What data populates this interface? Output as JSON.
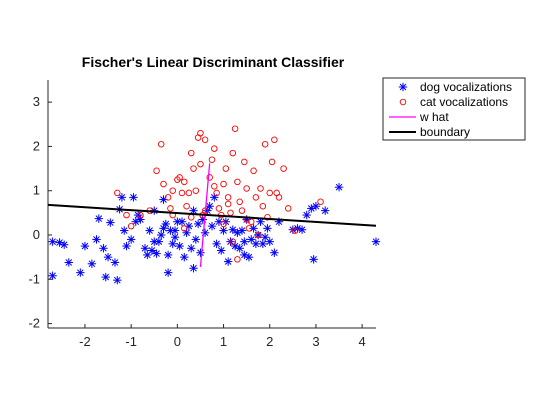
{
  "chart_data": {
    "type": "scatter",
    "title": "Fischer's Linear Discriminant Classifier",
    "xlabel": "",
    "ylabel": "",
    "xlim": [
      -2.8,
      4.3
    ],
    "ylim": [
      -2.1,
      3.5
    ],
    "xticks": [
      -2,
      -1,
      0,
      1,
      2,
      3,
      4
    ],
    "yticks": [
      -2,
      -1,
      0,
      1,
      2,
      3
    ],
    "grid": false,
    "legend_position": "top-right-outside",
    "colors": {
      "dog": "#0000ff",
      "cat": "#ff0000",
      "what": "#ff00ff",
      "boundary": "#000000",
      "axis": "#262626"
    },
    "legend": [
      {
        "key": "dog",
        "label": "dog vocalizations"
      },
      {
        "key": "cat",
        "label": "cat vocalizations"
      },
      {
        "key": "what",
        "label": "w hat"
      },
      {
        "key": "boundary",
        "label": "boundary"
      }
    ],
    "series": [
      {
        "name": "dog vocalizations",
        "key": "dog",
        "marker": "asterisk",
        "points": [
          [
            -2.7,
            -0.15
          ],
          [
            -2.55,
            -0.17
          ],
          [
            -2.45,
            -0.22
          ],
          [
            -2.7,
            -0.92
          ],
          [
            -2.35,
            -0.62
          ],
          [
            -2.1,
            -0.85
          ],
          [
            -2.0,
            -0.25
          ],
          [
            -1.85,
            -0.65
          ],
          [
            -1.75,
            -0.1
          ],
          [
            -1.7,
            0.37
          ],
          [
            -1.6,
            -0.3
          ],
          [
            -1.55,
            -0.95
          ],
          [
            -1.5,
            -0.5
          ],
          [
            -1.45,
            0.28
          ],
          [
            -1.35,
            -0.62
          ],
          [
            -1.3,
            -1.02
          ],
          [
            -1.25,
            0.58
          ],
          [
            -1.2,
            0.85
          ],
          [
            -1.15,
            0.1
          ],
          [
            -1.1,
            -0.25
          ],
          [
            -1.0,
            -0.1
          ],
          [
            -0.95,
            0.85
          ],
          [
            -0.9,
            0.3
          ],
          [
            -0.85,
            0.45
          ],
          [
            -0.8,
            0.35
          ],
          [
            -0.7,
            -0.3
          ],
          [
            -0.65,
            -0.45
          ],
          [
            -0.6,
            0.1
          ],
          [
            -0.55,
            -0.35
          ],
          [
            -0.5,
            -0.15
          ],
          [
            -0.45,
            -0.42
          ],
          [
            -0.4,
            -0.15
          ],
          [
            -0.35,
            0.0
          ],
          [
            -0.3,
            0.15
          ],
          [
            -0.25,
            0.25
          ],
          [
            -0.2,
            -0.45
          ],
          [
            -0.15,
            0.1
          ],
          [
            -0.1,
            -0.2
          ],
          [
            -0.2,
            -0.85
          ],
          [
            -0.05,
            -0.05
          ],
          [
            0.05,
            -0.25
          ],
          [
            0.1,
            0.3
          ],
          [
            0.15,
            -0.5
          ],
          [
            0.2,
            0.05
          ],
          [
            0.25,
            0.2
          ],
          [
            0.3,
            -0.3
          ],
          [
            0.35,
            -0.75
          ],
          [
            0.4,
            -0.1
          ],
          [
            0.5,
            -0.4
          ],
          [
            0.55,
            0.35
          ],
          [
            0.6,
            0.05
          ],
          [
            0.65,
            0.55
          ],
          [
            0.7,
            0.65
          ],
          [
            0.75,
            0.2
          ],
          [
            0.8,
            0.85
          ],
          [
            0.85,
            -0.2
          ],
          [
            0.9,
            0.3
          ],
          [
            0.95,
            -0.35
          ],
          [
            1.0,
            0.1
          ],
          [
            1.05,
            0.3
          ],
          [
            1.1,
            -0.6
          ],
          [
            1.15,
            -0.15
          ],
          [
            1.2,
            0.12
          ],
          [
            1.25,
            -0.25
          ],
          [
            1.3,
            0.05
          ],
          [
            1.35,
            -0.3
          ],
          [
            1.4,
            0.1
          ],
          [
            1.45,
            -0.15
          ],
          [
            1.5,
            0.35
          ],
          [
            1.55,
            -0.5
          ],
          [
            1.6,
            -0.1
          ],
          [
            1.65,
            0.15
          ],
          [
            1.7,
            -0.2
          ],
          [
            1.75,
            0.0
          ],
          [
            1.8,
            0.3
          ],
          [
            1.85,
            -0.2
          ],
          [
            1.9,
            -0.05
          ],
          [
            1.95,
            0.15
          ],
          [
            2.0,
            -0.15
          ],
          [
            2.1,
            -0.4
          ],
          [
            2.2,
            0.3
          ],
          [
            2.5,
            0.12
          ],
          [
            2.6,
            0.15
          ],
          [
            2.7,
            0.12
          ],
          [
            2.8,
            0.45
          ],
          [
            2.9,
            0.6
          ],
          [
            2.95,
            -0.55
          ],
          [
            3.0,
            0.65
          ],
          [
            3.2,
            0.55
          ],
          [
            3.5,
            1.08
          ],
          [
            4.3,
            -0.15
          ],
          [
            -0.3,
            0.8
          ],
          [
            0.0,
            0.3
          ],
          [
            -0.5,
            0.55
          ],
          [
            0.35,
            0.55
          ],
          [
            1.45,
            -0.45
          ],
          [
            0.45,
            0.25
          ],
          [
            -0.05,
            0.1
          ]
        ]
      },
      {
        "name": "cat vocalizations",
        "key": "cat",
        "marker": "circle",
        "points": [
          [
            -1.3,
            0.95
          ],
          [
            -1.1,
            0.45
          ],
          [
            -1.0,
            0.2
          ],
          [
            -0.8,
            0.45
          ],
          [
            -0.6,
            0.55
          ],
          [
            -0.45,
            1.45
          ],
          [
            -0.35,
            2.05
          ],
          [
            -0.3,
            1.15
          ],
          [
            -0.2,
            0.85
          ],
          [
            -0.15,
            0.6
          ],
          [
            -0.1,
            1.0
          ],
          [
            0.0,
            1.25
          ],
          [
            0.05,
            1.3
          ],
          [
            0.1,
            0.95
          ],
          [
            0.15,
            1.2
          ],
          [
            0.2,
            0.65
          ],
          [
            0.25,
            0.95
          ],
          [
            0.3,
            1.85
          ],
          [
            0.35,
            1.5
          ],
          [
            0.4,
            1.0
          ],
          [
            0.45,
            2.2
          ],
          [
            0.5,
            2.3
          ],
          [
            0.55,
            0.45
          ],
          [
            0.6,
            2.15
          ],
          [
            0.7,
            1.3
          ],
          [
            0.75,
            1.7
          ],
          [
            0.8,
            1.1
          ],
          [
            0.85,
            0.95
          ],
          [
            0.9,
            0.6
          ],
          [
            1.0,
            1.15
          ],
          [
            1.05,
            1.5
          ],
          [
            1.1,
            0.85
          ],
          [
            1.15,
            0.5
          ],
          [
            1.2,
            1.85
          ],
          [
            1.25,
            2.4
          ],
          [
            1.3,
            1.2
          ],
          [
            1.35,
            0.75
          ],
          [
            1.4,
            0.55
          ],
          [
            1.45,
            1.65
          ],
          [
            1.5,
            1.05
          ],
          [
            1.55,
            0.15
          ],
          [
            1.6,
            0.3
          ],
          [
            1.65,
            1.45
          ],
          [
            1.7,
            0.85
          ],
          [
            1.75,
            0.0
          ],
          [
            1.8,
            1.05
          ],
          [
            1.85,
            0.65
          ],
          [
            1.9,
            2.05
          ],
          [
            2.0,
            0.95
          ],
          [
            2.05,
            1.65
          ],
          [
            2.1,
            2.15
          ],
          [
            2.15,
            0.95
          ],
          [
            2.2,
            0.85
          ],
          [
            2.3,
            1.5
          ],
          [
            2.4,
            0.6
          ],
          [
            0.6,
            0.55
          ],
          [
            1.0,
            0.25
          ],
          [
            0.3,
            0.4
          ],
          [
            1.3,
            -0.55
          ],
          [
            0.95,
            0.45
          ],
          [
            1.1,
            0.7
          ],
          [
            1.5,
            0.35
          ],
          [
            0.8,
            1.95
          ],
          [
            -0.1,
            0.45
          ],
          [
            2.55,
            0.1
          ],
          [
            1.2,
            -0.15
          ],
          [
            3.1,
            0.75
          ],
          [
            1.95,
            0.4
          ],
          [
            0.5,
            1.6
          ],
          [
            0.15,
            0.15
          ]
        ]
      }
    ],
    "lines": [
      {
        "name": "w hat",
        "key": "what",
        "x": [
          0.5,
          0.7
        ],
        "y": [
          -0.72,
          1.62
        ]
      },
      {
        "name": "boundary",
        "key": "boundary",
        "x": [
          -2.8,
          4.3
        ],
        "y": [
          0.68,
          0.21
        ]
      }
    ]
  }
}
